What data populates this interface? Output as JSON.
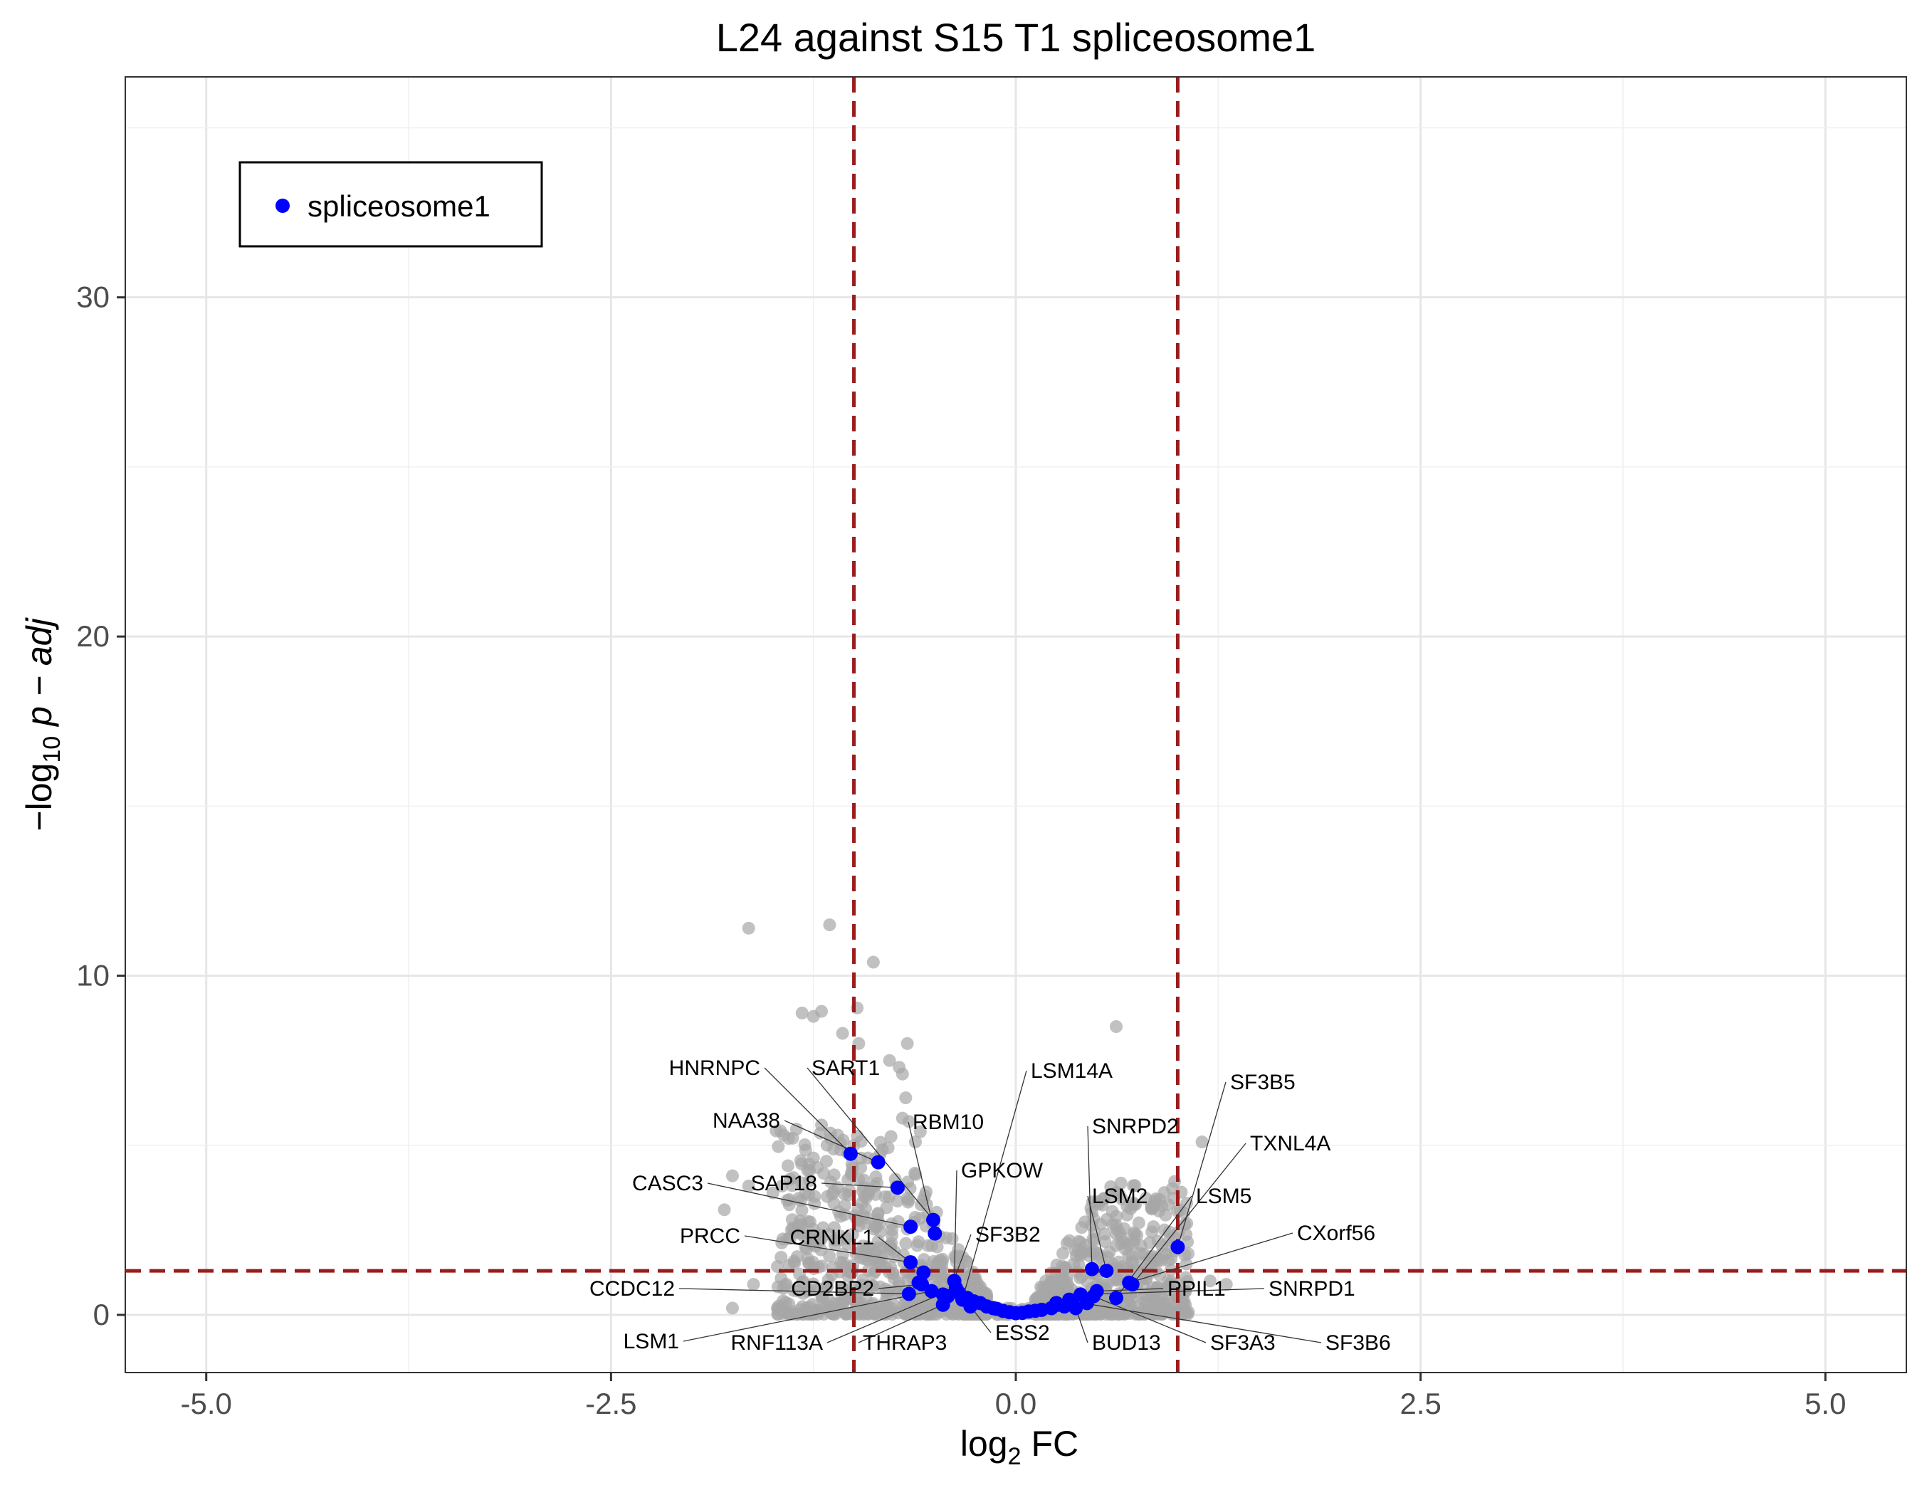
{
  "chart_data": {
    "type": "scatter",
    "title": "L24 against S15 T1 spliceosome1",
    "xlabel_main": "log",
    "xlabel_sub": "2",
    "xlabel_rest": " FC",
    "ylabel_prefix": "−log",
    "ylabel_sub": "10",
    "ylabel_rest": " p − adj",
    "xlim": [
      -5.5,
      5.5
    ],
    "ylim": [
      -1.7,
      36.5
    ],
    "x_ticks": [
      -5.0,
      -2.5,
      0.0,
      2.5,
      5.0
    ],
    "x_tick_labels": [
      "-5.0",
      "-2.5",
      "0.0",
      "2.5",
      "5.0"
    ],
    "y_ticks": [
      0,
      10,
      20,
      30
    ],
    "y_tick_labels": [
      "0",
      "10",
      "20",
      "30"
    ],
    "grid": true,
    "legend_position": "top-left",
    "colors": {
      "background_points": "#a6a6a6",
      "highlight_points": "#0000ff",
      "threshold_lines": "#9b1c1c",
      "grid": "#e6e6e6",
      "panel_border": "#333333"
    },
    "thresholds": {
      "x": [
        -1,
        1
      ],
      "y": 1.3
    },
    "series": [
      {
        "name": "spliceosome1",
        "points": [
          {
            "x": -1.02,
            "y": 4.75,
            "label": "HNRNPC"
          },
          {
            "x": -0.85,
            "y": 4.5,
            "label": "NAA38"
          },
          {
            "x": -0.73,
            "y": 3.75,
            "label": "SAP18"
          },
          {
            "x": -0.65,
            "y": 2.6,
            "label": "CASC3"
          },
          {
            "x": -0.51,
            "y": 2.8,
            "label": "SART1"
          },
          {
            "x": -0.5,
            "y": 2.4,
            "label": "RBM10"
          },
          {
            "x": -0.65,
            "y": 1.55,
            "label": "PRCC"
          },
          {
            "x": -0.57,
            "y": 1.25,
            "label": "CRNKL1"
          },
          {
            "x": -0.66,
            "y": 0.62,
            "label": "CCDC12"
          },
          {
            "x": -0.58,
            "y": 0.9,
            "label": "CD2BP2"
          },
          {
            "x": -0.52,
            "y": 0.7,
            "label": "LSM1"
          },
          {
            "x": -0.37,
            "y": 0.8,
            "label": "RNF113A"
          },
          {
            "x": -0.38,
            "y": 1.0,
            "label": "GPKOW"
          },
          {
            "x": -0.42,
            "y": 0.55,
            "label": "SF3B2"
          },
          {
            "x": -0.33,
            "y": 0.45,
            "label": "LSM14A"
          },
          {
            "x": -0.45,
            "y": 0.3,
            "label": "THRAP3"
          },
          {
            "x": -0.28,
            "y": 0.25,
            "label": "ESS2"
          },
          {
            "x": 0.47,
            "y": 1.35,
            "label": "SNRPD2"
          },
          {
            "x": 0.56,
            "y": 1.3,
            "label": "LSM2"
          },
          {
            "x": 0.37,
            "y": 0.2,
            "label": "BUD13"
          },
          {
            "x": 0.48,
            "y": 0.55,
            "label": "SF3A3"
          },
          {
            "x": 1.0,
            "y": 2.0,
            "label": "SF3B5"
          },
          {
            "x": 0.72,
            "y": 0.9,
            "label": "TXNL4A"
          },
          {
            "x": 0.62,
            "y": 0.5,
            "label": "LSM5"
          },
          {
            "x": 0.7,
            "y": 0.95,
            "label": "CXorf56"
          },
          {
            "x": 0.5,
            "y": 0.7,
            "label": "PPIL1"
          },
          {
            "x": 0.4,
            "y": 0.6,
            "label": "SNRPD1"
          },
          {
            "x": 0.35,
            "y": 0.4,
            "label": "SF3B6"
          },
          {
            "x": -0.6,
            "y": 0.95
          },
          {
            "x": -0.45,
            "y": 0.6
          },
          {
            "x": -0.3,
            "y": 0.5
          },
          {
            "x": -0.22,
            "y": 0.35
          },
          {
            "x": -0.18,
            "y": 0.25
          },
          {
            "x": -0.12,
            "y": 0.18
          },
          {
            "x": -0.08,
            "y": 0.12
          },
          {
            "x": -0.04,
            "y": 0.08
          },
          {
            "x": 0.0,
            "y": 0.05
          },
          {
            "x": 0.04,
            "y": 0.06
          },
          {
            "x": 0.08,
            "y": 0.1
          },
          {
            "x": 0.12,
            "y": 0.12
          },
          {
            "x": 0.16,
            "y": 0.15
          },
          {
            "x": 0.22,
            "y": 0.2
          },
          {
            "x": 0.26,
            "y": 0.3
          },
          {
            "x": 0.3,
            "y": 0.25
          },
          {
            "x": 0.33,
            "y": 0.45
          },
          {
            "x": 0.25,
            "y": 0.35
          },
          {
            "x": -0.14,
            "y": 0.2
          },
          {
            "x": -0.26,
            "y": 0.4
          },
          {
            "x": -0.35,
            "y": 0.65
          },
          {
            "x": 0.44,
            "y": 0.35
          }
        ]
      }
    ]
  },
  "legend": {
    "label": "spliceosome1"
  }
}
